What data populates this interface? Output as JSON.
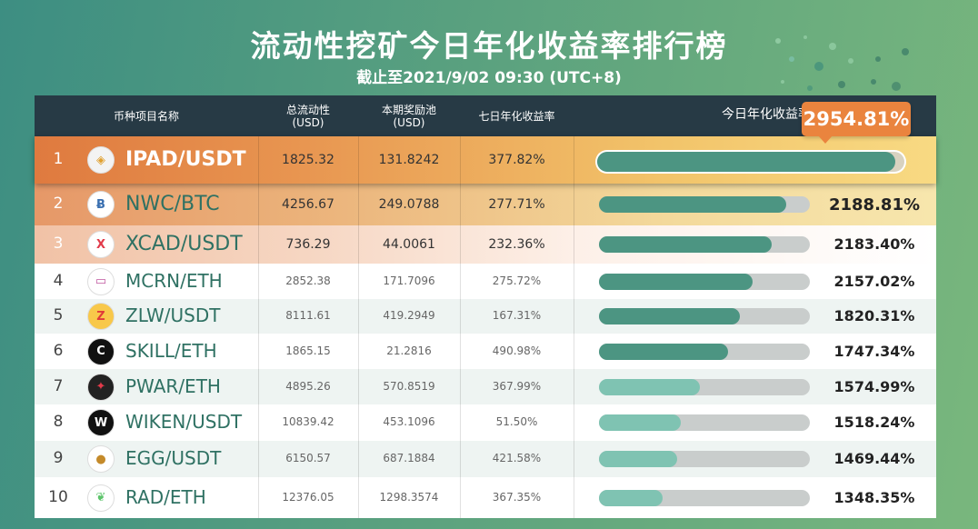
{
  "title": "流动性挖矿今日年化收益率排行榜",
  "subtitle": "截止至2021/9/02 09:30 (UTC+8)",
  "header": {
    "name": "币种项目名称",
    "tvl": "总流动性",
    "tvl_unit": "(USD)",
    "pool": "本期奖励池",
    "pool_unit": "(USD)",
    "apy7": "七日年化收益率",
    "today": "今日年化收益率"
  },
  "colors": {
    "bar_dark": "#4c9582",
    "bar_light": "#7fc3b2",
    "accent": "#ea843e"
  },
  "rows": [
    {
      "rank": "1",
      "pair": "IPAD/USDT",
      "icon": "ipad-coin-icon",
      "tvl": "1825.32",
      "pool": "131.8242",
      "apy7": "377.82%",
      "today": "2954.81%",
      "fill": 0.97
    },
    {
      "rank": "2",
      "pair": "NWC/BTC",
      "icon": "nwc-coin-icon",
      "tvl": "4256.67",
      "pool": "249.0788",
      "apy7": "277.71%",
      "today": "2188.81%",
      "fill": 0.89
    },
    {
      "rank": "3",
      "pair": "XCAD/USDT",
      "icon": "xcad-coin-icon",
      "tvl": "736.29",
      "pool": "44.0061",
      "apy7": "232.36%",
      "today": "2183.40%",
      "fill": 0.82
    },
    {
      "rank": "4",
      "pair": "MCRN/ETH",
      "icon": "mcrn-coin-icon",
      "tvl": "2852.38",
      "pool": "171.7096",
      "apy7": "275.72%",
      "today": "2157.02%",
      "fill": 0.73
    },
    {
      "rank": "5",
      "pair": "ZLW/USDT",
      "icon": "zlw-coin-icon",
      "tvl": "8111.61",
      "pool": "419.2949",
      "apy7": "167.31%",
      "today": "1820.31%",
      "fill": 0.67
    },
    {
      "rank": "6",
      "pair": "SKILL/ETH",
      "icon": "skill-coin-icon",
      "tvl": "1865.15",
      "pool": "21.2816",
      "apy7": "490.98%",
      "today": "1747.34%",
      "fill": 0.61
    },
    {
      "rank": "7",
      "pair": "PWAR/ETH",
      "icon": "pwar-coin-icon",
      "tvl": "4895.26",
      "pool": "570.8519",
      "apy7": "367.99%",
      "today": "1574.99%",
      "fill": 0.48
    },
    {
      "rank": "8",
      "pair": "WIKEN/USDT",
      "icon": "wiken-coin-icon",
      "tvl": "10839.42",
      "pool": "453.1096",
      "apy7": "51.50%",
      "today": "1518.24%",
      "fill": 0.39
    },
    {
      "rank": "9",
      "pair": "EGG/USDT",
      "icon": "egg-coin-icon",
      "tvl": "6150.57",
      "pool": "687.1884",
      "apy7": "421.58%",
      "today": "1469.44%",
      "fill": 0.37
    },
    {
      "rank": "10",
      "pair": "RAD/ETH",
      "icon": "rad-coin-icon",
      "tvl": "12376.05",
      "pool": "1298.3574",
      "apy7": "367.35%",
      "today": "1348.35%",
      "fill": 0.3
    }
  ]
}
